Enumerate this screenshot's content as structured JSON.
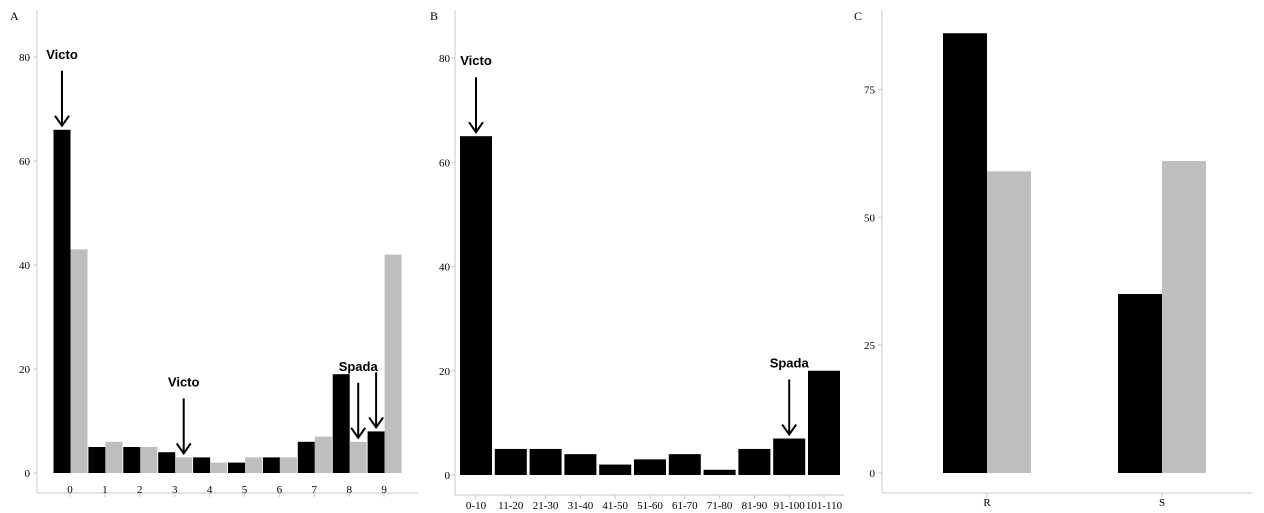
{
  "chart_data": [
    {
      "panel": "A",
      "type": "bar",
      "categories": [
        "0",
        "1",
        "2",
        "3",
        "4",
        "5",
        "6",
        "7",
        "8",
        "9"
      ],
      "series": [
        {
          "color": "#000000",
          "values": [
            66,
            5,
            5,
            4,
            3,
            2,
            3,
            6,
            19,
            8
          ]
        },
        {
          "color": "#bebebe",
          "values": [
            43,
            6,
            5,
            3,
            2,
            3,
            3,
            7,
            6,
            42
          ]
        }
      ],
      "yticks": [
        0,
        20,
        40,
        60,
        80
      ],
      "ylim": [
        0,
        80
      ],
      "annotations": [
        {
          "text": "Victo",
          "category": "0",
          "series": 0
        },
        {
          "text": "Victo",
          "category": "3",
          "series": 1
        },
        {
          "text": "Spada",
          "category": "8",
          "series": 1
        },
        {
          "text": "",
          "category": "9",
          "series": 0
        }
      ]
    },
    {
      "panel": "B",
      "type": "bar",
      "categories": [
        "0-10",
        "11-20",
        "21-30",
        "31-40",
        "41-50",
        "51-60",
        "61-70",
        "71-80",
        "81-90",
        "91-100",
        "101-110"
      ],
      "series": [
        {
          "color": "#000000",
          "values": [
            65,
            5,
            5,
            4,
            2,
            3,
            4,
            1,
            5,
            7,
            20
          ]
        }
      ],
      "yticks": [
        0,
        20,
        40,
        60,
        80
      ],
      "ylim": [
        0,
        80
      ],
      "annotations": [
        {
          "text": "Victo",
          "category": "0-10",
          "series": 0
        },
        {
          "text": "Spada",
          "category": "91-100",
          "series": 0
        }
      ]
    },
    {
      "panel": "C",
      "type": "bar",
      "categories": [
        "R",
        "S"
      ],
      "series": [
        {
          "color": "#000000",
          "values": [
            86,
            35
          ]
        },
        {
          "color": "#bebebe",
          "values": [
            59,
            61
          ]
        }
      ],
      "yticks": [
        0,
        25,
        50,
        75
      ],
      "ylim": [
        0,
        88
      ],
      "annotations": []
    }
  ]
}
